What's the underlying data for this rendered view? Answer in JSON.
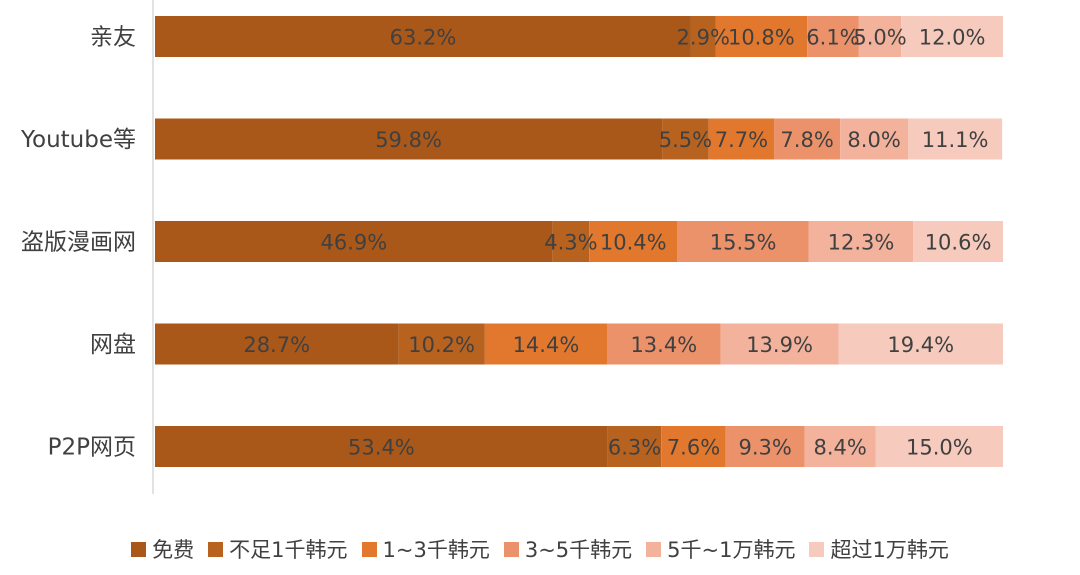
{
  "chart_data": {
    "type": "bar",
    "orientation": "horizontal",
    "stacked": true,
    "categories": [
      "亲友",
      "Youtube等",
      "盗版漫画网",
      "网盘",
      "P2P网页"
    ],
    "series": [
      {
        "name": "免费",
        "color": "#A9581A",
        "values": [
          63.2,
          59.8,
          46.9,
          28.7,
          53.4
        ],
        "labels": [
          "63.2%",
          "59.8%",
          "46.9%",
          "28.7%",
          "53.4%"
        ]
      },
      {
        "name": "不足1千韩元",
        "color": "#B86220",
        "values": [
          2.9,
          5.5,
          4.3,
          10.2,
          6.3
        ],
        "labels": [
          "2.9%",
          "5.5%",
          "4.3%",
          "10.2%",
          "6.3%"
        ]
      },
      {
        "name": "1~3千韩元",
        "color": "#E2782E",
        "values": [
          10.8,
          7.7,
          10.4,
          14.4,
          7.6
        ],
        "labels": [
          "10.8%",
          "7.7%",
          "10.4%",
          "14.4%",
          "7.6%"
        ]
      },
      {
        "name": "3~5千韩元",
        "color": "#EC926A",
        "values": [
          6.1,
          7.8,
          15.5,
          13.4,
          9.3
        ],
        "labels": [
          "6.1%",
          "7.8%",
          "15.5%",
          "13.4%",
          "9.3%"
        ]
      },
      {
        "name": "5千~1万韩元",
        "color": "#F2B29C",
        "values": [
          5.0,
          8.0,
          12.3,
          13.9,
          8.4
        ],
        "labels": [
          "5.0%",
          "8.0%",
          "12.3%",
          "13.9%",
          "8.4%"
        ]
      },
      {
        "name": "超过1万韩元",
        "color": "#F6CBBE",
        "values": [
          12.0,
          11.1,
          10.6,
          19.4,
          15.0
        ],
        "labels": [
          "12.0%",
          "11.1%",
          "10.6%",
          "19.4%",
          "15.0%"
        ]
      }
    ],
    "xlim": [
      0,
      100
    ],
    "grid": false,
    "legend": "bottom"
  }
}
